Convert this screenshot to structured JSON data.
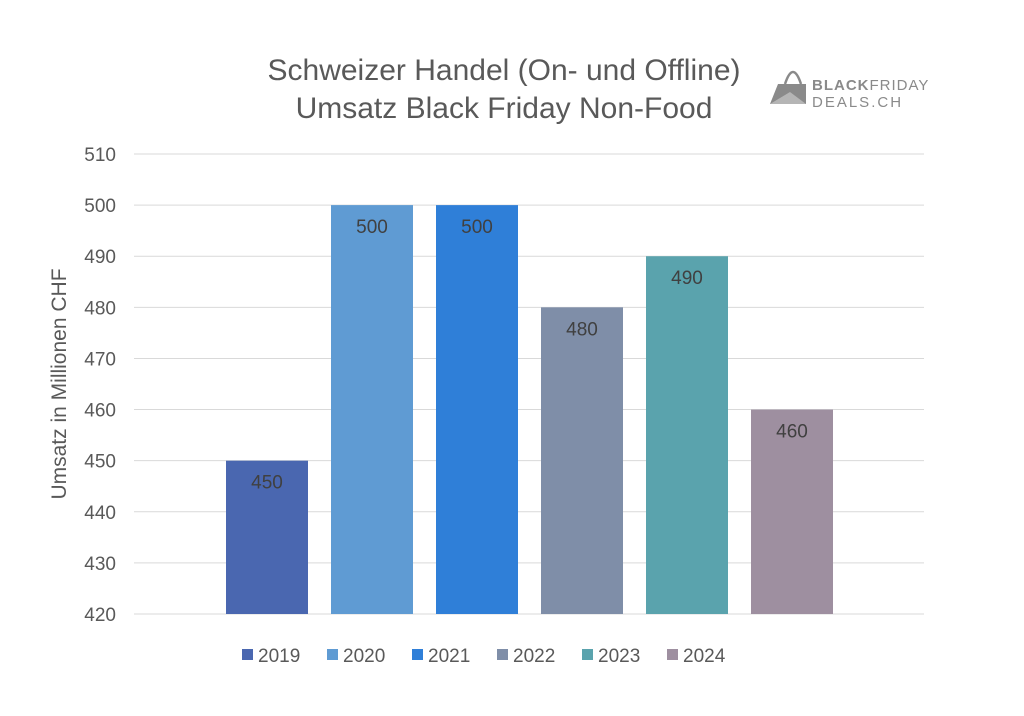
{
  "logo": {
    "line1_bold": "BLACK",
    "line1_regular": "FRIDAY",
    "line2": "DEALS.CH",
    "icon": "shopping-bag-icon"
  },
  "chart_data": {
    "type": "bar",
    "title": [
      "Schweizer Handel (On- und Offline)",
      "Umsatz Black Friday Non-Food"
    ],
    "xlabel": "",
    "ylabel": "Umsatz in Millionen CHF",
    "ylim": [
      420,
      510
    ],
    "yticks": [
      420,
      430,
      440,
      450,
      460,
      470,
      480,
      490,
      500,
      510
    ],
    "grid": true,
    "legend_position": "bottom",
    "categories": [
      "2019",
      "2020",
      "2021",
      "2022",
      "2023",
      "2024"
    ],
    "values": [
      450,
      500,
      500,
      480,
      490,
      460
    ],
    "colors": [
      "#4a67b0",
      "#5f9bd3",
      "#2f7fd8",
      "#7f8ea8",
      "#5aa3ad",
      "#9e8fa0"
    ],
    "data_labels": true
  }
}
